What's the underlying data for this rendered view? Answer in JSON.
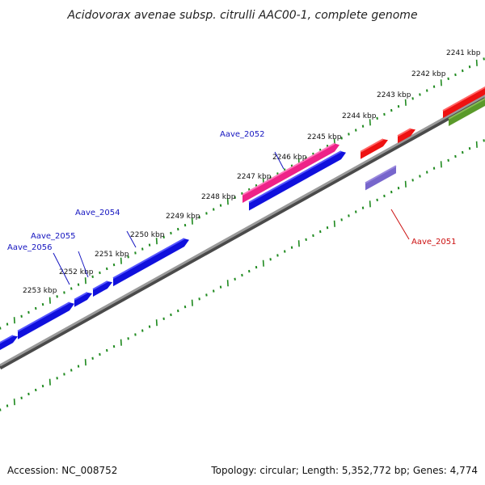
{
  "title": "Acidovorax avenae subsp. citrulli AAC00-1, complete genome",
  "footer": {
    "accession": "Accession: NC_008752",
    "summary": "Topology: circular; Length: 5,352,772 bp; Genes: 4,774"
  },
  "colors": {
    "backbone": "#7a7a7a",
    "ticks": "#1f8a1f",
    "gene_blue": "#1010dd",
    "gene_pink": "#ee2288",
    "gene_red": "#ee1111",
    "gene_purple": "#7766cc",
    "gene_olive": "#5a9a2a",
    "label_blue": "#1515c0",
    "label_red": "#cc1111"
  },
  "kbp_labels": [
    "2241 kbp",
    "2242 kbp",
    "2243 kbp",
    "2244 kbp",
    "2245 kbp",
    "2246 kbp",
    "2247 kbp",
    "2248 kbp",
    "2249 kbp",
    "2250 kbp",
    "2251 kbp",
    "2252 kbp",
    "2253 kbp"
  ],
  "gene_labels": [
    "Aave_2052",
    "Aave_2054",
    "Aave_2055",
    "Aave_2056",
    "Aave_2051"
  ]
}
